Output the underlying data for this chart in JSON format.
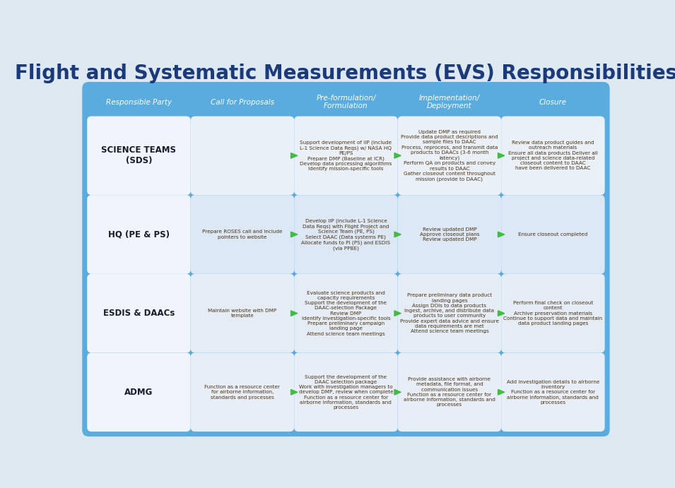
{
  "title": "Flight and Systematic Measurements (EVS) Responsibilities",
  "title_color": "#1a3a7a",
  "bg_color": "#dde8f0",
  "col_bg_color": "#5aabde",
  "cell_bg_color_light": "#e8eef8",
  "cell_bg_color_mid": "#d8e4f4",
  "white_cell_bg": "#f0f4fa",
  "header_text_color": "#ffffff",
  "row_label_text_color": "#1a1a2e",
  "cell_text_color": "#4a3010",
  "arrow_color": "#44bb44",
  "columns": [
    "Responsible Party",
    "Call for Proposals",
    "Pre-formulation/\nFormulation",
    "Implementation/\nDeployment",
    "Closure"
  ],
  "rows": [
    "SCIENCE TEAMS\n(SDS)",
    "HQ (PE & PS)",
    "ESDIS & DAACs",
    "ADMG"
  ],
  "cells": [
    [
      "SCIENCE TEAMS\n(SDS)",
      "",
      "Support development of IIP (include\nL-1 Science Data Reqs) w/ NASA HQ\nPE/PS\nPrepare DMP (Baseline at ICR)\nDevelop data processing algorithms\nIdentify mission-specific tools",
      "Update DMP as required\nProvide data product descriptions and\nsample files to DAAC\nProcess, reprocess, and transmit data\nproducts to DAACs (3-6 month\nlatency)\nPerform QA on products and convey\nresults to DAAC\nGather closeout content throughout\nmission (provide to DAAC)",
      "Review data product guides and\noutreach materials\nEnsure all data products Deliver all\nproject and science data-related\ncloseout content to DAAC\nhave been delivered to DAAC"
    ],
    [
      "HQ (PE & PS)",
      "Prepare ROSES call and include\npointers to website",
      "Develop IIP (include L-1 Science\nData Reqs) with Flight Project and\nScience Team (PE, PS)\nSelect DAAC (Data systems PE)\nAllocate funds to PI (PS) and ESDIS\n(via PPBE)",
      "Review updated DMP\nApprove closeout plans\nReview updated DMP",
      "Ensure closeout completed"
    ],
    [
      "ESDIS & DAACs",
      "Maintain website with DMP\ntemplate",
      "Evaluate science products and\ncapacity requirements\nSupport the development of the\nDAAC-selection Package\nReview DMP\nIdentify investigation-specific tools\nPrepare preliminary campaign\nlanding page\nAttend science team meetings",
      "Prepare preliminary data product\nlanding pages\nAssign DOIs to data products\nIngest, archive, and distribute data\nproducts to user community\nProvide expert data advice and ensure\ndata requirements are met\nAttend science team meetings",
      "Perform final check on closeout\ncontent\nArchive preservation materials\nContinue to support data and maintain\ndata product landing pages"
    ],
    [
      "ADMG",
      "Function as a resource center\nfor airborne information,\nstandards and processes",
      "Support the development of the\nDAAC selection package\nWork with investigation managers to\ndevelop DMP, review when complete\nFunction as a resource center for\nairborne information, standards and\nprocesses",
      "Provide assistance with airborne\nmetadata, file format, and\ncommunication issues\nFunction as a resource center for\nairborne information, standards and\nprocesses",
      "Add investigation details to airborne\ninventory\nFunction as a resource center for\nairborne information, standards and\nprocesses"
    ]
  ]
}
